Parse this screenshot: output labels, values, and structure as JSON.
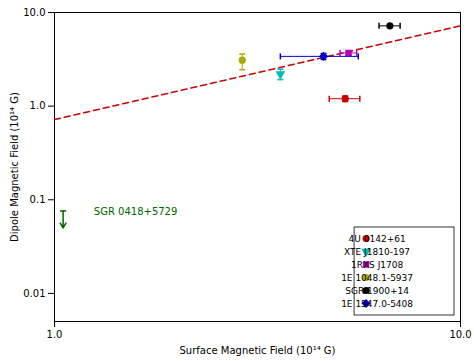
{
  "chart_data": {
    "type": "scatter",
    "xlabel": "Surface Magnetic Field (10¹⁴ G)",
    "ylabel": "Dipole Magnetic Field (10¹⁴ G)",
    "log": true,
    "xlim": [
      1,
      10
    ],
    "ylim": [
      0.005011872336272722,
      10
    ],
    "xticks": [
      {
        "value": 1,
        "label": "1.0"
      },
      {
        "value": 10,
        "label": "10.0"
      }
    ],
    "yticks": [
      0.01,
      0.1,
      {
        "value": 1,
        "label": "1.0"
      },
      {
        "value": 10,
        "label": "10.0"
      }
    ],
    "grid": false,
    "legend": "lower right",
    "series": [
      {
        "type": "line",
        "line_style": "dashed",
        "color": "#cc0000",
        "x": [
          1,
          10
        ],
        "values": [
          0.72,
          7.2
        ]
      },
      {
        "name": "4U 0142+61",
        "color": "#cc0000",
        "marker": "circle",
        "x": [
          5.2
        ],
        "values": [
          1.2
        ],
        "xerr_lo": [
          0.45
        ],
        "xerr_hi": [
          0.45
        ],
        "yerr_lo": [
          0.08
        ],
        "yerr_hi": [
          0.08
        ]
      },
      {
        "name": "XTE J1810-197",
        "color": "#00bbbb",
        "marker": "triangle_down",
        "x": [
          3.6
        ],
        "values": [
          2.2
        ],
        "yerr_lo": [
          0.28
        ],
        "yerr_hi": [
          0.28
        ]
      },
      {
        "name": "1RXS J1708",
        "color": "#bb00bb",
        "marker": "square",
        "x": [
          5.3
        ],
        "values": [
          3.7
        ],
        "xerr_lo": [
          0.25
        ],
        "xerr_hi": [
          0.25
        ],
        "yerr_lo": [
          0.2
        ],
        "yerr_hi": [
          0.2
        ]
      },
      {
        "name": "1E 1048.1-5937",
        "color": "#aaaa00",
        "marker": "circle",
        "x": [
          2.9
        ],
        "values": [
          3.1
        ],
        "yerr_lo": [
          0.65
        ],
        "yerr_hi": [
          0.5
        ]
      },
      {
        "name": "SGR 1900+14",
        "color": "#000000",
        "marker": "circle",
        "x": [
          6.7
        ],
        "values": [
          7.2
        ],
        "xerr_lo": [
          0.4
        ],
        "xerr_hi": [
          0.4
        ]
      },
      {
        "name": "1E 1547.0-5408",
        "color": "#0000cc",
        "marker": "diamond",
        "x": [
          4.6
        ],
        "values": [
          3.4
        ],
        "xerr_lo": [
          1.0
        ],
        "xerr_hi": [
          1.0
        ],
        "yerr_lo": [
          0.25
        ],
        "yerr_hi": [
          0.25
        ]
      },
      {
        "type": "upper_limit",
        "color": "#006600",
        "x": [
          1.05
        ],
        "values": [
          0.075
        ],
        "yerr_lo": [
          0.025
        ],
        "yerr_hi": [
          0.001
        ]
      }
    ],
    "annotations": [
      {
        "text": "SGR 0418+5729",
        "x": 1.25,
        "y": 0.068,
        "color": "#006600"
      }
    ]
  }
}
